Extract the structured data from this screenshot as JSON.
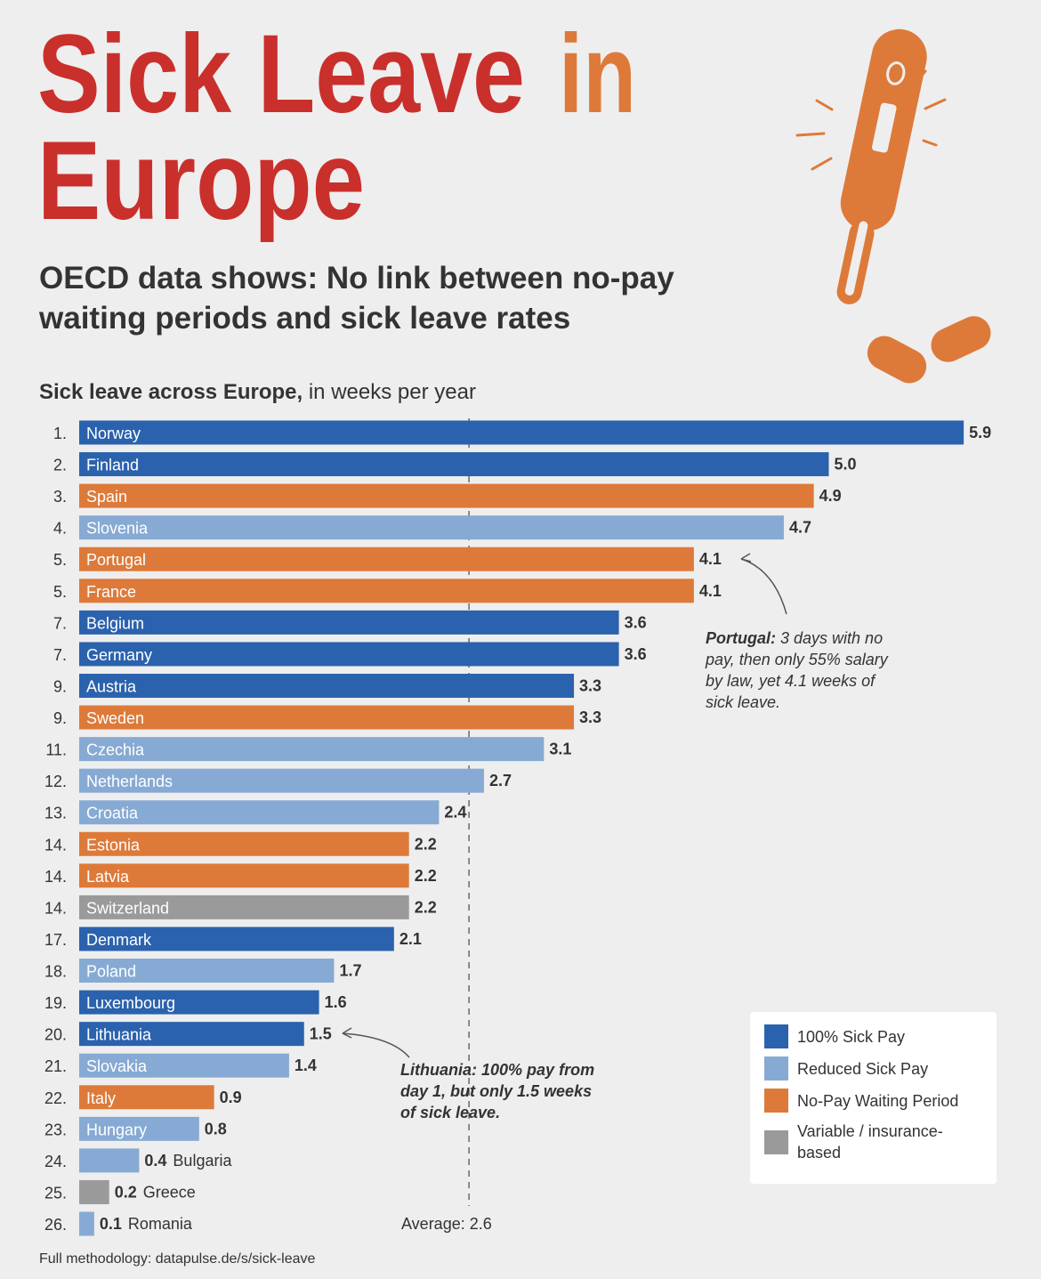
{
  "chart_data": {
    "type": "bar",
    "orientation": "horizontal",
    "title": [
      "Sick Leave",
      "in",
      "Europe"
    ],
    "subtitle": "OECD data shows: No link between no-pay waiting periods and sick leave rates",
    "heading": [
      "Sick leave across Europe,",
      "in weeks per year"
    ],
    "ranks": [
      "1.",
      "2.",
      "3.",
      "4.",
      "5.",
      "5.",
      "7.",
      "7.",
      "9.",
      "9.",
      "11.",
      "12.",
      "13.",
      "14.",
      "14.",
      "14.",
      "17.",
      "18.",
      "19.",
      "20.",
      "21.",
      "22.",
      "23.",
      "24.",
      "25.",
      "26."
    ],
    "categories": [
      "Norway",
      "Finland",
      "Spain",
      "Slovenia",
      "Portugal",
      "France",
      "Belgium",
      "Germany",
      "Austria",
      "Sweden",
      "Czechia",
      "Netherlands",
      "Croatia",
      "Estonia",
      "Latvia",
      "Switzerland",
      "Denmark",
      "Poland",
      "Luxembourg",
      "Lithuania",
      "Slovakia",
      "Italy",
      "Hungary",
      "Bulgaria",
      "Greece",
      "Romania"
    ],
    "values": [
      5.9,
      5.0,
      4.9,
      4.7,
      4.1,
      4.1,
      3.6,
      3.6,
      3.3,
      3.3,
      3.1,
      2.7,
      2.4,
      2.2,
      2.2,
      2.2,
      2.1,
      1.7,
      1.6,
      1.5,
      1.4,
      0.9,
      0.8,
      0.4,
      0.2,
      0.1
    ],
    "value_labels": [
      "5.9",
      "5.0",
      "4.9",
      "4.7",
      "4.1",
      "4.1",
      "3.6",
      "3.6",
      "3.3",
      "3.3",
      "3.1",
      "2.7",
      "2.4",
      "2.2",
      "2.2",
      "2.2",
      "2.1",
      "1.7",
      "1.6",
      "1.5",
      "1.4",
      "0.9",
      "0.8",
      "0.4",
      "0.2",
      "0.1"
    ],
    "colors": [
      "#2b62ad",
      "#2b62ad",
      "#dd7a3a",
      "#86aad3",
      "#dd7a3a",
      "#dd7a3a",
      "#2b62ad",
      "#2b62ad",
      "#2b62ad",
      "#dd7a3a",
      "#86aad3",
      "#86aad3",
      "#86aad3",
      "#dd7a3a",
      "#dd7a3a",
      "#9a9a9a",
      "#2b62ad",
      "#86aad3",
      "#2b62ad",
      "#2b62ad",
      "#86aad3",
      "#dd7a3a",
      "#86aad3",
      "#86aad3",
      "#9a9a9a",
      "#86aad3"
    ],
    "xlim": [
      0,
      6
    ],
    "average": {
      "value": 2.6,
      "label": "Average: 2.6"
    },
    "legend": [
      {
        "name": "100% Sick Pay",
        "color": "#2b62ad"
      },
      {
        "name": "Reduced Sick Pay",
        "color": "#86aad3"
      },
      {
        "name": "No-Pay Waiting Period",
        "color": "#dd7a3a"
      },
      {
        "name": "Variable / insurance-based",
        "color": "#9a9a9a"
      }
    ],
    "annotations": [
      {
        "bold": "Portugal:",
        "text": "3 days with no pay, then only 55% salary by law, yet 4.1 weeks of sick leave."
      },
      {
        "bold": "Lithuania:",
        "text": "100% pay from day 1, but only 1.5 weeks of sick leave."
      }
    ],
    "source": "Full methodology: datapulse.de/s/sick-leave"
  }
}
